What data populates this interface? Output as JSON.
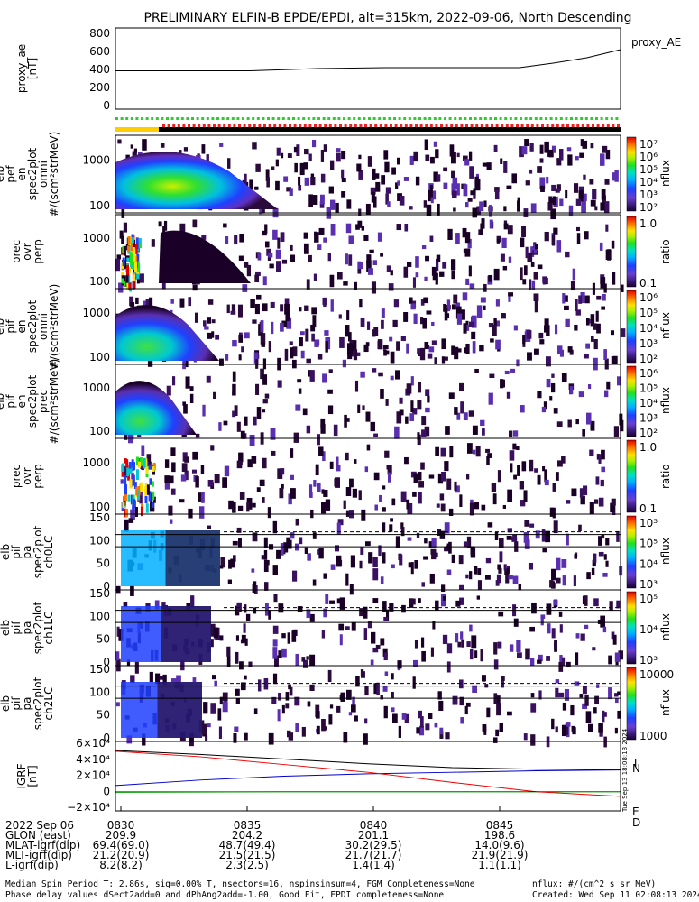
{
  "title": "PRELIMINARY ELFIN-B EPDE/EPDI, alt=315km, 2022-09-06, North Descending",
  "chart_data": [
    {
      "type": "line",
      "panel": "proxy_ae",
      "ylabel": [
        "proxy_ae",
        "[nT]"
      ],
      "legend": "proxy_AE",
      "yticks": [
        "800",
        "600",
        "400",
        "200",
        "0"
      ],
      "ylim": [
        0,
        800
      ],
      "x_minutes": [
        0,
        4,
        8,
        12,
        16,
        20,
        24,
        26,
        28,
        30
      ],
      "values": [
        385,
        385,
        385,
        410,
        420,
        420,
        420,
        470,
        530,
        620
      ]
    },
    {
      "type": "heatmap",
      "panel": "omni energy spectrogram",
      "ylabel": [
        "elb",
        "pef",
        "en",
        "spec2plot",
        "omni",
        "#/(scm²strMeV)"
      ],
      "yticks": [
        "1000",
        "100"
      ],
      "colorbar": {
        "label": "nflux",
        "ticks": [
          "10⁷",
          "10⁶",
          "10⁵",
          "10⁴",
          "10³",
          "10²"
        ]
      }
    },
    {
      "type": "heatmap",
      "panel": "precipitating ratio",
      "ylabel": [
        "prec",
        "ovr",
        "perp"
      ],
      "yticks": [
        "1000",
        "100"
      ],
      "colorbar": {
        "label": "ratio",
        "ticks": [
          "1.0",
          "0.1"
        ]
      }
    },
    {
      "type": "heatmap",
      "panel": "omni energy spectrogram",
      "ylabel": [
        "elb",
        "pif",
        "en",
        "spec2plot",
        "omni",
        "#/(scm²strMeV)"
      ],
      "yticks": [
        "1000",
        "100"
      ],
      "colorbar": {
        "label": "nflux",
        "ticks": [
          "10⁶",
          "10⁵",
          "10⁴",
          "10³",
          "10²"
        ]
      }
    },
    {
      "type": "heatmap",
      "panel": "precipitating spectrogram",
      "ylabel": [
        "elb",
        "pif",
        "en",
        "spec2plot",
        "prec",
        "#/(scm²strMeV)"
      ],
      "yticks": [
        "1000",
        "100"
      ],
      "colorbar": {
        "label": "nflux",
        "ticks": [
          "10⁶",
          "10⁵",
          "10⁴",
          "10³",
          "10²"
        ]
      }
    },
    {
      "type": "heatmap",
      "panel": "precipitating ratio",
      "ylabel": [
        "prec",
        "ovr",
        "perp"
      ],
      "yticks": [
        "1000",
        "100"
      ],
      "colorbar": {
        "label": "ratio",
        "ticks": [
          "1.0",
          "0.1"
        ]
      }
    },
    {
      "type": "heatmap",
      "panel": "pitch angle ch0LC",
      "ylabel": [
        "elb",
        "pif",
        "pa",
        "spec2plot",
        "ch0LC"
      ],
      "yticks": [
        "150",
        "100",
        "50",
        "0"
      ],
      "colorbar": {
        "label": "nflux",
        "ticks": [
          "10⁵",
          "10⁵",
          "10⁴",
          "10³"
        ]
      }
    },
    {
      "type": "heatmap",
      "panel": "pitch angle ch1LC",
      "ylabel": [
        "elb",
        "pif",
        "pa",
        "spec2plot",
        "ch1LC"
      ],
      "yticks": [
        "150",
        "100",
        "50",
        "0"
      ],
      "colorbar": {
        "label": "nflux",
        "ticks": [
          "10⁵",
          "10⁴",
          "10³"
        ]
      }
    },
    {
      "type": "heatmap",
      "panel": "pitch angle ch2LC",
      "ylabel": [
        "elb",
        "pif",
        "pa",
        "spec2plot",
        "ch2LC"
      ],
      "yticks": [
        "150",
        "100",
        "50",
        "0"
      ],
      "colorbar": {
        "label": "nflux",
        "ticks": [
          "10000",
          "1000"
        ]
      }
    },
    {
      "type": "line",
      "panel": "IGRF",
      "ylabel": [
        "IGRF",
        "[nT]"
      ],
      "yticks": [
        "6×10⁴",
        "4×10⁴",
        "2×10⁴",
        "0",
        "−2×10⁴"
      ],
      "ylim": [
        -20000,
        60000
      ],
      "legend": [
        "T",
        "N",
        "E",
        "D"
      ],
      "x_minutes": [
        0,
        5,
        10,
        15,
        20,
        25,
        30
      ],
      "series": [
        {
          "name": "T",
          "color": "#000000",
          "values": [
            53000,
            48000,
            42000,
            36000,
            31000,
            29000,
            28500
          ]
        },
        {
          "name": "N",
          "color": "#0000cc",
          "values": [
            8000,
            15000,
            20000,
            23000,
            25000,
            27000,
            28000
          ]
        },
        {
          "name": "E",
          "color": "#009900",
          "values": [
            -700,
            -400,
            -200,
            -100,
            -100,
            -100,
            -100
          ]
        },
        {
          "name": "D",
          "color": "#ee0000",
          "values": [
            52000,
            45000,
            35000,
            25000,
            12000,
            0,
            -6000
          ]
        }
      ]
    }
  ],
  "xaxis": {
    "row_labels": [
      "2022 Sep 06",
      "GLON (east)",
      "MLAT-igrf(dip)",
      "MLT-igrf(dip)",
      "L-igrf(dip)"
    ],
    "ticks": [
      {
        "time": "0830",
        "glon": "209.9",
        "mlat": "69.4(69.0)",
        "mlt": "21.2(20.9)",
        "l": "8.2(8.2)"
      },
      {
        "time": "0835",
        "glon": "204.2",
        "mlat": "48.7(49.4)",
        "mlt": "21.5(21.5)",
        "l": "2.3(2.5)"
      },
      {
        "time": "0840",
        "glon": "201.1",
        "mlat": "30.2(29.5)",
        "mlt": "21.7(21.7)",
        "l": "1.4(1.4)"
      },
      {
        "time": "0845",
        "glon": "198.6",
        "mlat": "14.0(9.6)",
        "mlt": "21.9(21.9)",
        "l": "1.1(1.1)"
      }
    ]
  },
  "side_stamp": "Tue Sep 13 18:08:13 2024",
  "footer": {
    "line1": "Median Spin Period T: 2.86s, sig=0.00% T, nsectors=16, nspinsinsum=4, FGM Completeness=None",
    "line2": "Phase delay values dSect2add=0 and dPhAng2add=-1.00, Good Fit, EPDI completeness=None",
    "right1": "nflux: #/(cm^2 s sr MeV)",
    "right2": "Created: Wed Sep 11 02:08:13 2024"
  }
}
